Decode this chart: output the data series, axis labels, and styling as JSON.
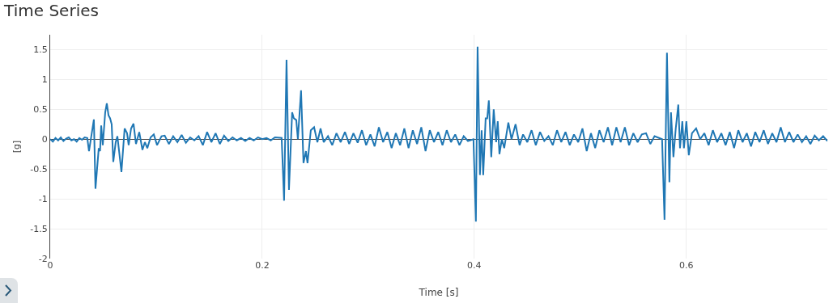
{
  "chart_data": {
    "type": "line",
    "title": "Time Series",
    "xlabel": "Time [s]",
    "ylabel": "[g]",
    "xlim": [
      0,
      0.733
    ],
    "xticks": [
      0,
      0.2,
      0.4,
      0.6
    ],
    "ylim": [
      -2,
      1.75
    ],
    "yticks": [
      -2,
      -1.5,
      -1,
      -0.5,
      0,
      0.5,
      1,
      1.5
    ],
    "grid": true,
    "marker": "none",
    "line_style": "solid",
    "series": [
      {
        "color": "#1f77b4",
        "x": [
          0,
          0.0025,
          0.005,
          0.0075,
          0.01,
          0.0125,
          0.015,
          0.0175,
          0.02,
          0.0225,
          0.025,
          0.0275,
          0.03,
          0.0325,
          0.035,
          0.0366,
          0.0412,
          0.0427,
          0.0458,
          0.047,
          0.0481,
          0.0496,
          0.0519,
          0.0534,
          0.055,
          0.0565,
          0.058,
          0.0595,
          0.0618,
          0.0634,
          0.0672,
          0.0702,
          0.0725,
          0.074,
          0.0763,
          0.0786,
          0.0809,
          0.084,
          0.087,
          0.0893,
          0.0916,
          0.0947,
          0.0977,
          0.1008,
          0.105,
          0.108,
          0.112,
          0.116,
          0.12,
          0.124,
          0.128,
          0.132,
          0.136,
          0.14,
          0.144,
          0.148,
          0.152,
          0.156,
          0.16,
          0.164,
          0.168,
          0.172,
          0.176,
          0.18,
          0.184,
          0.188,
          0.192,
          0.196,
          0.2,
          0.204,
          0.208,
          0.212,
          0.2183,
          0.2206,
          0.2229,
          0.2252,
          0.2282,
          0.2298,
          0.2321,
          0.2336,
          0.2366,
          0.2389,
          0.2412,
          0.2427,
          0.2458,
          0.2489,
          0.252,
          0.255,
          0.258,
          0.262,
          0.266,
          0.27,
          0.274,
          0.278,
          0.282,
          0.286,
          0.29,
          0.294,
          0.298,
          0.302,
          0.306,
          0.31,
          0.314,
          0.318,
          0.322,
          0.326,
          0.33,
          0.334,
          0.338,
          0.342,
          0.346,
          0.35,
          0.354,
          0.358,
          0.362,
          0.366,
          0.37,
          0.374,
          0.378,
          0.382,
          0.386,
          0.39,
          0.394,
          0.3992,
          0.4015,
          0.4031,
          0.4053,
          0.4069,
          0.4084,
          0.4107,
          0.4122,
          0.4137,
          0.416,
          0.4183,
          0.4206,
          0.4221,
          0.4237,
          0.426,
          0.4282,
          0.4321,
          0.4351,
          0.4389,
          0.4427,
          0.446,
          0.45,
          0.454,
          0.458,
          0.462,
          0.466,
          0.47,
          0.474,
          0.478,
          0.482,
          0.486,
          0.49,
          0.494,
          0.498,
          0.502,
          0.506,
          0.51,
          0.514,
          0.518,
          0.522,
          0.526,
          0.53,
          0.534,
          0.538,
          0.542,
          0.546,
          0.55,
          0.554,
          0.558,
          0.562,
          0.566,
          0.57,
          0.5771,
          0.5794,
          0.5817,
          0.584,
          0.5855,
          0.5878,
          0.59,
          0.5924,
          0.594,
          0.5962,
          0.5977,
          0.6,
          0.6023,
          0.6053,
          0.6092,
          0.613,
          0.617,
          0.621,
          0.625,
          0.629,
          0.633,
          0.637,
          0.641,
          0.645,
          0.649,
          0.653,
          0.657,
          0.661,
          0.665,
          0.669,
          0.673,
          0.677,
          0.681,
          0.685,
          0.689,
          0.693,
          0.697,
          0.701,
          0.705,
          0.709,
          0.713,
          0.717,
          0.721,
          0.725,
          0.729,
          0.733
        ],
        "values": [
          0,
          -0.04,
          0.02,
          -0.02,
          0.03,
          -0.03,
          0.01,
          0.03,
          -0.02,
          0,
          -0.04,
          0.02,
          -0.01,
          0.03,
          0.02,
          -0.2,
          0.33,
          -0.83,
          -0.15,
          -0.2,
          0.23,
          -0.1,
          0.45,
          0.6,
          0.4,
          0.35,
          0.25,
          -0.38,
          -0.05,
          0.05,
          -0.55,
          0.18,
          0.1,
          -0.1,
          0.18,
          0.26,
          -0.08,
          0.12,
          -0.18,
          -0.05,
          -0.15,
          0.03,
          0.08,
          -0.1,
          0.05,
          0.06,
          -0.08,
          0.05,
          -0.05,
          0.07,
          -0.06,
          0.03,
          -0.02,
          0.05,
          -0.1,
          0.12,
          -0.05,
          0.1,
          -0.08,
          0.06,
          -0.03,
          0.03,
          -0.02,
          0.02,
          -0.03,
          0.02,
          -0.02,
          0.03,
          0,
          0.02,
          -0.02,
          0.03,
          0.02,
          -1.03,
          1.33,
          -0.85,
          0.45,
          0.35,
          0.32,
          0,
          0.82,
          -0.4,
          -0.2,
          -0.4,
          0.15,
          0.2,
          -0.05,
          0.18,
          -0.05,
          0.05,
          -0.1,
          0.1,
          -0.05,
          0.12,
          -0.08,
          0.1,
          -0.06,
          0.15,
          -0.1,
          0.08,
          -0.12,
          0.2,
          -0.05,
          0.12,
          -0.15,
          0.1,
          -0.1,
          0.18,
          -0.15,
          0.15,
          -0.08,
          0.2,
          -0.2,
          0.15,
          -0.05,
          0.12,
          -0.1,
          0.15,
          -0.05,
          0.08,
          -0.1,
          0.05,
          -0.03,
          0,
          -1.38,
          1.55,
          -0.6,
          0.15,
          -0.6,
          0.35,
          0.35,
          0.65,
          -0.3,
          0.5,
          -0.05,
          0.3,
          -0.25,
          0,
          -0.15,
          0.28,
          0,
          0.25,
          -0.1,
          0.08,
          -0.05,
          0.15,
          -0.1,
          0.12,
          -0.03,
          0.05,
          -0.1,
          0.15,
          -0.05,
          0.12,
          -0.1,
          0.08,
          -0.05,
          0.18,
          -0.2,
          0.1,
          -0.15,
          0.15,
          -0.05,
          0.2,
          -0.1,
          0.2,
          -0.05,
          0.2,
          -0.1,
          0.1,
          -0.05,
          0.08,
          0.1,
          -0.08,
          0.05,
          0,
          -1.35,
          1.45,
          -0.72,
          0.45,
          -0.3,
          0.18,
          0.58,
          -0.15,
          0.3,
          -0.15,
          0.3,
          -0.27,
          0.1,
          0.18,
          0,
          0.1,
          -0.1,
          0.15,
          -0.05,
          0.1,
          -0.1,
          0.12,
          -0.15,
          0.15,
          -0.05,
          0.1,
          -0.12,
          0.12,
          -0.05,
          0.15,
          -0.08,
          0.1,
          -0.05,
          0.2,
          -0.05,
          0.12,
          -0.05,
          0.08,
          -0.05,
          0.05,
          -0.08,
          0.06,
          -0.02,
          0.05,
          -0.03
        ]
      }
    ]
  }
}
